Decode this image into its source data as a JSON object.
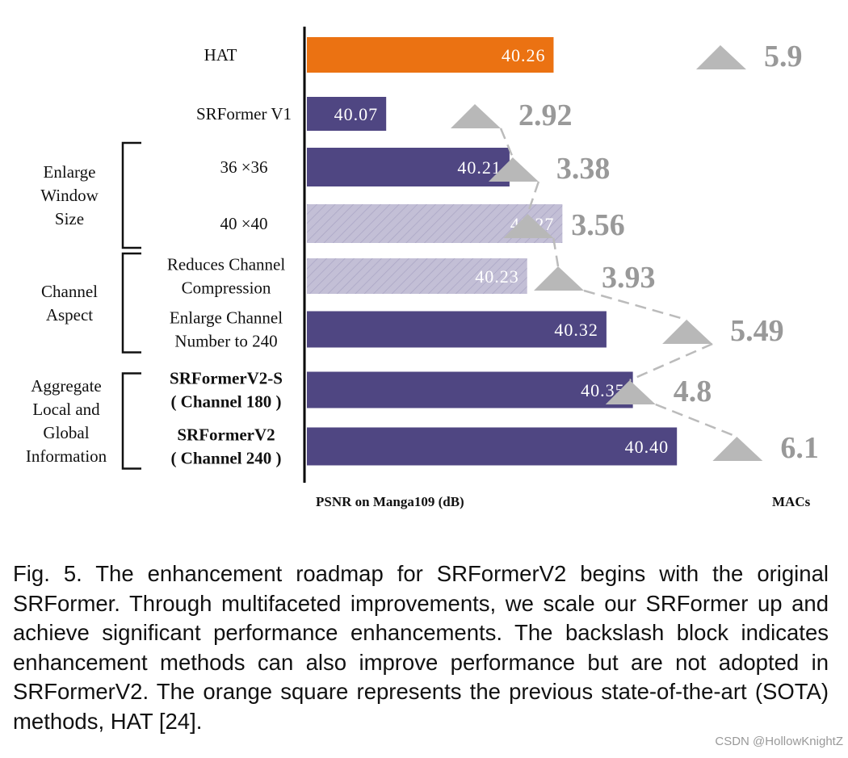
{
  "chart_data": {
    "type": "bar",
    "orientation": "horizontal",
    "xlabel": "PSNR on Manga109 (dB)",
    "secondary_label": "MACs",
    "colors": {
      "sota": "#eb7212",
      "adopted": "#4f4682",
      "not_adopted": "#c3bfd6",
      "macs": "#b8b8b8",
      "macs_text": "#999999"
    },
    "rows": [
      {
        "label": [
          "HAT"
        ],
        "bold": false,
        "psnr": 40.26,
        "psnr_label": "40.26",
        "macs": 5.9,
        "macs_label": "5.9",
        "style": "sota"
      },
      {
        "label": [
          "SRFormer V1"
        ],
        "bold": false,
        "psnr": 40.07,
        "psnr_label": "40.07",
        "macs": 2.92,
        "macs_label": "2.92",
        "style": "adopted"
      },
      {
        "label": [
          "36 ×36"
        ],
        "bold": false,
        "psnr": 40.21,
        "psnr_label": "40.21",
        "macs": 3.38,
        "macs_label": "3.38",
        "style": "adopted"
      },
      {
        "label": [
          "40 ×40"
        ],
        "bold": false,
        "psnr": 40.27,
        "psnr_label": "40.27",
        "macs": 3.56,
        "macs_label": "3.56",
        "style": "hatched"
      },
      {
        "label": [
          "Reduces Channel",
          "Compression"
        ],
        "bold": false,
        "psnr": 40.23,
        "psnr_label": "40.23",
        "macs": 3.93,
        "macs_label": "3.93",
        "style": "hatched"
      },
      {
        "label": [
          "Enlarge Channel",
          "Number to 240"
        ],
        "bold": false,
        "psnr": 40.32,
        "psnr_label": "40.32",
        "macs": 5.49,
        "macs_label": "5.49",
        "style": "adopted"
      },
      {
        "label": [
          "SRFormerV2-S",
          "( Channel 180 )"
        ],
        "bold": true,
        "psnr": 40.35,
        "psnr_label": "40.35",
        "macs": 4.8,
        "macs_label": "4.8",
        "style": "adopted"
      },
      {
        "label": [
          "SRFormerV2",
          "( Channel 240 )"
        ],
        "bold": true,
        "psnr": 40.4,
        "psnr_label": "40.40",
        "macs": 6.1,
        "macs_label": "6.1",
        "style": "adopted"
      }
    ],
    "groups": [
      {
        "label": [
          "Enlarge",
          "Window",
          "Size"
        ],
        "rows": [
          2,
          3
        ]
      },
      {
        "label": [
          "Channel",
          "Aspect"
        ],
        "rows": [
          4,
          5
        ]
      },
      {
        "label": [
          "Aggregate",
          "Local and",
          "Global",
          "Information"
        ],
        "rows": [
          6,
          7
        ]
      }
    ]
  },
  "caption": "Fig. 5.  The enhancement roadmap for SRFormerV2 begins with the original SRFormer. Through multifaceted improvements, we scale our SRFormer up and achieve significant performance enhancements. The backslash block indicates enhancement methods can also improve performance but are not adopted in SRFormerV2. The orange square represents the previous state-of-the-art (SOTA) methods, HAT [24].",
  "watermark": "CSDN @HollowKnightZ"
}
